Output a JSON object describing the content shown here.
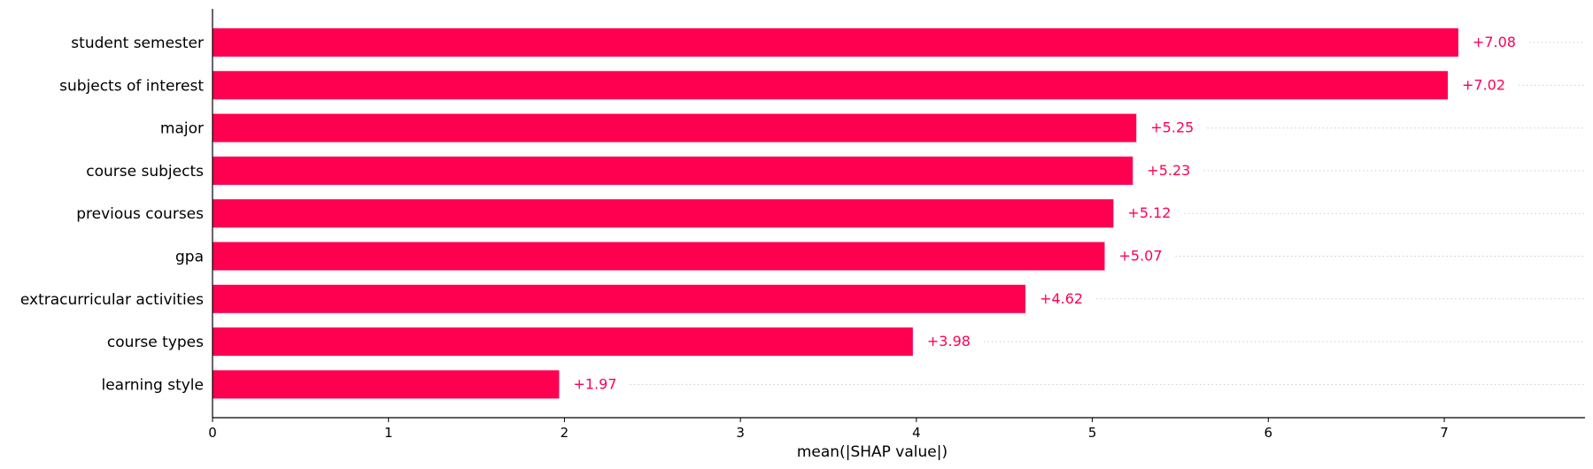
{
  "chart_data": {
    "type": "bar",
    "orientation": "horizontal",
    "categories": [
      "student semester",
      "subjects of interest",
      "major",
      "course subjects",
      "previous courses",
      "gpa",
      "extracurricular activities",
      "course types",
      "learning style"
    ],
    "values": [
      7.08,
      7.02,
      5.25,
      5.23,
      5.12,
      5.07,
      4.62,
      3.98,
      1.97
    ],
    "value_labels": [
      "+7.08",
      "+7.02",
      "+5.25",
      "+5.23",
      "+5.12",
      "+5.07",
      "+4.62",
      "+3.98",
      "+1.97"
    ],
    "xlabel": "mean(|SHAP value|)",
    "xlim": [
      0,
      7.8
    ],
    "xticks": [
      "0",
      "1",
      "2",
      "3",
      "4",
      "5",
      "6",
      "7"
    ],
    "bar_color": "#ff0051",
    "label_color": "#ff0051",
    "grid": "dotted horizontal guide lines after each bar"
  }
}
